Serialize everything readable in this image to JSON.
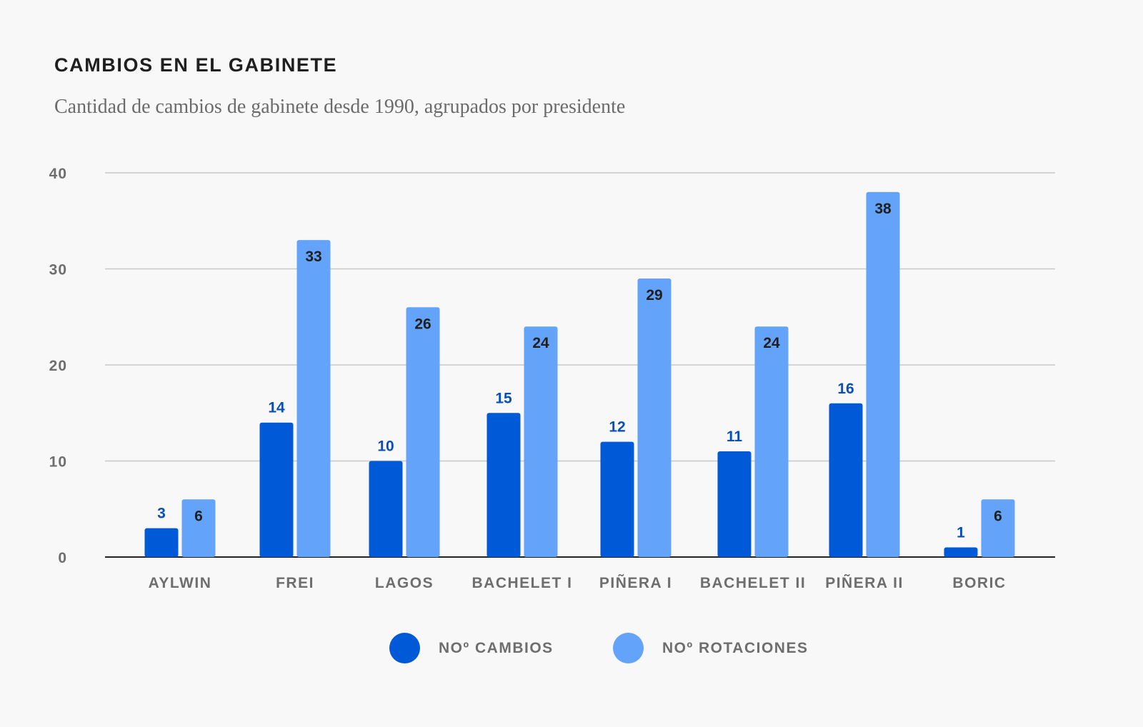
{
  "chart_data": {
    "type": "bar",
    "title": "CAMBIOS EN EL GABINETE",
    "subtitle": "Cantidad de cambios de gabinete desde 1990, agrupados por presidente",
    "categories": [
      "AYLWIN",
      "FREI",
      "LAGOS",
      "BACHELET I",
      "PIÑERA I",
      "BACHELET II",
      "PIÑERA II",
      "BORIC"
    ],
    "series": [
      {
        "name": "NOº CAMBIOS",
        "color": "#0059d6",
        "label_color": "#0a4fb8",
        "values": [
          3,
          14,
          10,
          15,
          12,
          11,
          16,
          1
        ]
      },
      {
        "name": "NOº ROTACIONES",
        "color": "#64a3fa",
        "label_color": "#1f1f1f",
        "values": [
          6,
          33,
          26,
          24,
          29,
          24,
          38,
          6
        ]
      }
    ],
    "ylim": [
      0,
      40
    ],
    "yticks": [
      0,
      10,
      20,
      30,
      40
    ],
    "xlabel": "",
    "ylabel": "",
    "grid": true,
    "legend": "bottom-center"
  }
}
